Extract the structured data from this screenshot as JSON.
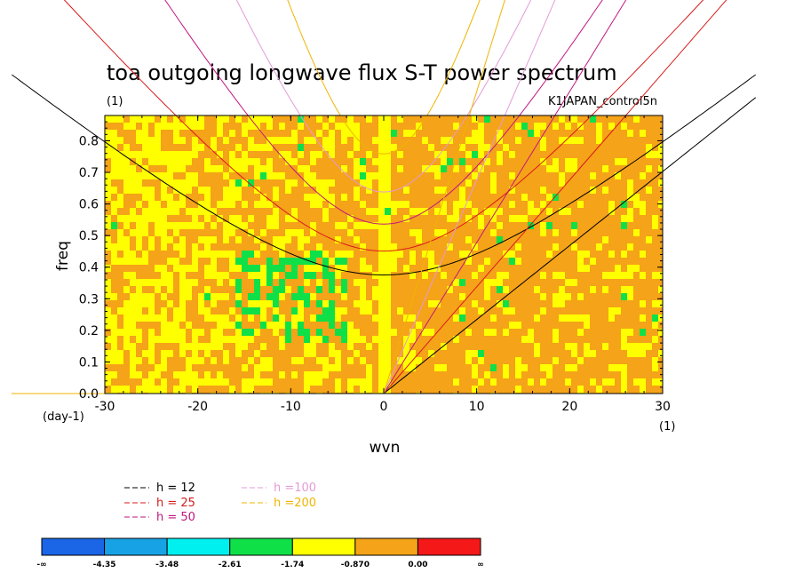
{
  "chart_data": {
    "type": "heatmap",
    "title": "toa outgoing longwave flux S-T power spectrum",
    "subtitle_left": "(1)",
    "subtitle_right": "K1JAPAN_control5n",
    "xlabel": "wvn",
    "ylabel": "freq",
    "x_unit": "(1)",
    "y_unit": "(day-1)",
    "xlim": [
      -30,
      30
    ],
    "ylim": [
      0,
      0.88
    ],
    "x_ticks": [
      -30,
      -20,
      -10,
      0,
      10,
      20,
      30
    ],
    "y_ticks": [
      0.0,
      0.1,
      0.2,
      0.3,
      0.4,
      0.5,
      0.6,
      0.7,
      0.8
    ],
    "dispersion_curves": [
      {
        "label": "h = 12",
        "h": 12,
        "color": "#000000"
      },
      {
        "label": "h = 25",
        "h": 25,
        "color": "#d81b1b"
      },
      {
        "label": "h = 50",
        "h": 50,
        "color": "#c0167e"
      },
      {
        "label": "h =100",
        "h": 100,
        "color": "#e39bd6"
      },
      {
        "label": "h =200",
        "h": 200,
        "color": "#f0b400"
      }
    ],
    "colorbar": {
      "labels": [
        "-∞",
        "-4.35",
        "-3.48",
        "-2.61",
        "-1.74",
        "-0.870",
        "0.00",
        "∞"
      ],
      "colors": [
        "#1a66e6",
        "#18a2e6",
        "#00f0f0",
        "#10e048",
        "#ffff00",
        "#f5a318",
        "#f51818"
      ]
    }
  }
}
